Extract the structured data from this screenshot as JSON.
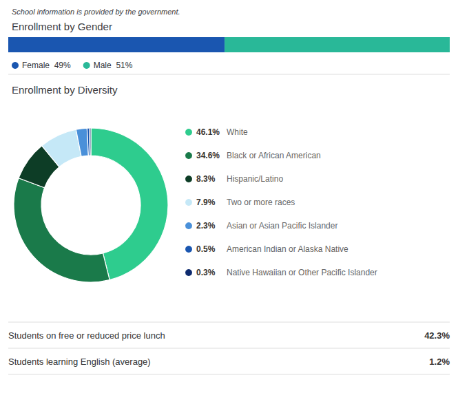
{
  "chart_data": [
    {
      "type": "bar",
      "title": "Enrollment by Gender",
      "annotations": [
        "School information is provided by the government."
      ],
      "orientation": "horizontal",
      "stacked": true,
      "categories": [
        null
      ],
      "series": [
        {
          "name": "Female",
          "color": "#1a56b0",
          "values": [
            49
          ],
          "value_labels": [
            "49%"
          ]
        },
        {
          "name": "Male",
          "color": "#29b898",
          "values": [
            51
          ],
          "value_labels": [
            "51%"
          ]
        }
      ],
      "xlim": [
        0,
        100
      ],
      "tick_labels": false,
      "grid": false,
      "legend": "bottom"
    },
    {
      "type": "pie",
      "title": "Enrollment by Diversity",
      "categories": [
        "White",
        "Black or African American",
        "Hispanic/Latino",
        "Two or more races",
        "Asian or Asian Pacific Islander",
        "American Indian or Alaska Native",
        "Native Hawaiian or Other Pacific Islander"
      ],
      "values": [
        46.1,
        34.6,
        8.3,
        7.9,
        2.3,
        0.5,
        0.3
      ],
      "value_labels": [
        "46.1%",
        "34.6%",
        "8.3%",
        "7.9%",
        "2.3%",
        "0.5%",
        "0.3%"
      ],
      "colors": [
        "#2ecc8e",
        "#1a7a4a",
        "#0d3d26",
        "#c5e8f7",
        "#4a90d9",
        "#1a56b0",
        "#0d2a6e"
      ],
      "legend": "right"
    },
    {
      "type": "table",
      "categories": [
        "Students on free or reduced price lunch",
        "Students learning English (average)"
      ],
      "values": [
        42.3,
        1.2
      ],
      "value_labels": [
        "42.3%",
        "1.2%"
      ]
    }
  ]
}
